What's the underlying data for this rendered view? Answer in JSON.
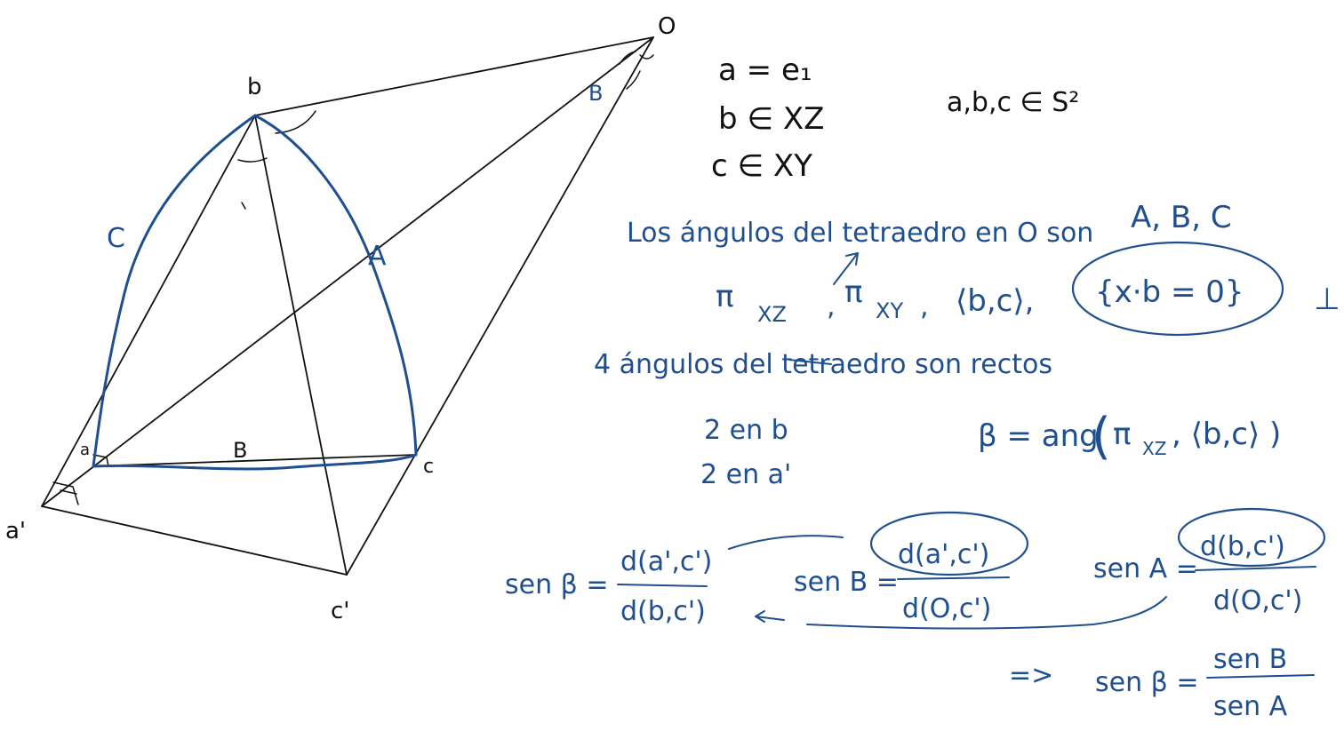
{
  "colors": {
    "ink_black": "#111111",
    "ink_blue": "#1f4f8f",
    "paper": "#ffffff"
  },
  "figure": {
    "points": {
      "O": "O",
      "b": "b",
      "a": "a",
      "a_prime": "a'",
      "c": "c",
      "c_prime": "c'"
    },
    "arcs": {
      "A": "A",
      "B": "B",
      "C": "C"
    },
    "angle_at_O": "B"
  },
  "notes": {
    "defs": {
      "line1": "a = e₁",
      "line2": "b ∈ XZ",
      "line3": "c ∈ XY",
      "sphere": "a,b,c ∈ S²"
    },
    "angles_text": "Los ángulos del tetraedro en O son",
    "angles_vals": "A, B, C",
    "planes": {
      "pi1": "π",
      "pi1_sub": "XZ",
      "pi2": "π",
      "pi2_sub": "XY",
      "span": "⟨b,c⟩,",
      "set": "{x·b = 0}",
      "perp": "⊥"
    },
    "right_angles": "4 ángulos del tetraedro son rectos",
    "two_in_b": "2 en b",
    "two_in_a": "2 en a'",
    "beta_def": "β = ang",
    "beta_def_args": "π",
    "beta_def_sub": "XZ",
    "beta_def_rest": ", ⟨b,c⟩ )",
    "beta_paren_open": "(",
    "sen_beta_lhs": "sen β =",
    "sen_beta_num": "d(a',c')",
    "sen_beta_den": "d(b,c')",
    "sen_B_lhs": "sen B =",
    "sen_B_num": "d(a',c')",
    "sen_B_den": "d(O,c')",
    "sen_A_lhs": "sen A =",
    "sen_A_num": "d(b,c')",
    "sen_A_den": "d(O,c')",
    "implies": "=>",
    "final_lhs": "sen β =",
    "final_num": "sen B",
    "final_den": "sen A"
  }
}
